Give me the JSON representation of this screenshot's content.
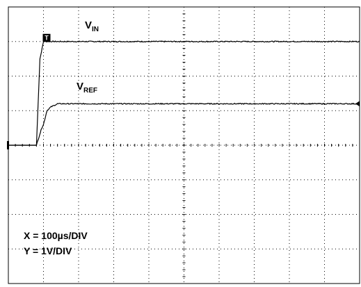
{
  "chart_data": {
    "type": "line",
    "title": "",
    "xlabel": "",
    "ylabel": "",
    "x_unit": "µs",
    "y_unit": "V",
    "xlim": [
      0,
      1000
    ],
    "ylim": [
      -4,
      4
    ],
    "grid": true,
    "series": [
      {
        "name": "VIN",
        "label_main": "V",
        "label_sub": "IN",
        "color": "#000000",
        "x": [
          0,
          80,
          90,
          100,
          120,
          140,
          1000
        ],
        "y": [
          0,
          0,
          2.5,
          3.0,
          3.0,
          3.0,
          3.0
        ]
      },
      {
        "name": "VREF",
        "label_main": "V",
        "label_sub": "REF",
        "color": "#000000",
        "x": [
          0,
          80,
          95,
          100,
          110,
          120,
          140,
          1000
        ],
        "y": [
          0,
          0,
          0.5,
          0.6,
          1.0,
          1.1,
          1.2,
          1.2
        ]
      }
    ],
    "annotations": [
      {
        "text": "X = 100µs/DIV"
      },
      {
        "text": "Y = 1V/DIV"
      }
    ],
    "markers": {
      "trigger": "T",
      "ground": "ground-marker",
      "ref_marker": "ref-level-marker"
    }
  }
}
